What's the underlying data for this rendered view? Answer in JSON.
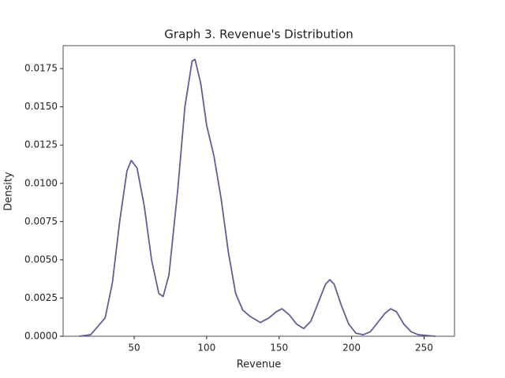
{
  "chart_data": {
    "type": "line",
    "title": "Graph 3. Revenue's Distribution",
    "x_label": "Revenue",
    "y_label": "Density",
    "x": [
      12,
      20,
      30,
      35,
      40,
      45,
      48,
      52,
      57,
      62,
      67,
      70,
      74,
      80,
      85,
      90,
      92,
      96,
      100,
      105,
      110,
      115,
      120,
      125,
      130,
      137,
      143,
      148,
      152,
      157,
      162,
      167,
      172,
      177,
      182,
      185,
      188,
      193,
      198,
      203,
      208,
      213,
      218,
      223,
      227,
      231,
      236,
      241,
      246,
      258
    ],
    "series": [
      {
        "color": "#5f5f96",
        "values": [
          0,
          0.0001,
          0.0012,
          0.0035,
          0.0075,
          0.0108,
          0.0115,
          0.011,
          0.0085,
          0.005,
          0.0028,
          0.0026,
          0.004,
          0.0095,
          0.015,
          0.018,
          0.0181,
          0.0165,
          0.0138,
          0.0118,
          0.009,
          0.0055,
          0.0028,
          0.0017,
          0.0013,
          0.0009,
          0.0012,
          0.0016,
          0.0018,
          0.0014,
          0.0008,
          0.0005,
          0.001,
          0.0022,
          0.0034,
          0.0037,
          0.0034,
          0.002,
          0.0008,
          0.0002,
          0.0001,
          0.0003,
          0.0009,
          0.0015,
          0.0018,
          0.0016,
          0.0008,
          0.0003,
          0.0001,
          0
        ]
      }
    ],
    "xlim": [
      1,
      271
    ],
    "ylim": [
      0,
      0.019
    ],
    "xticks": [
      50,
      100,
      150,
      200,
      250
    ],
    "yticks": [
      {
        "value": 0,
        "label": "0.0000"
      },
      {
        "value": 0.0025,
        "label": "0.0025"
      },
      {
        "value": 0.005,
        "label": "0.0050"
      },
      {
        "value": 0.0075,
        "label": "0.0075"
      },
      {
        "value": 0.01,
        "label": "0.0100"
      },
      {
        "value": 0.0125,
        "label": "0.0125"
      },
      {
        "value": 0.015,
        "label": "0.0150"
      },
      {
        "value": 0.0175,
        "label": "0.0175"
      }
    ],
    "grid": false
  }
}
